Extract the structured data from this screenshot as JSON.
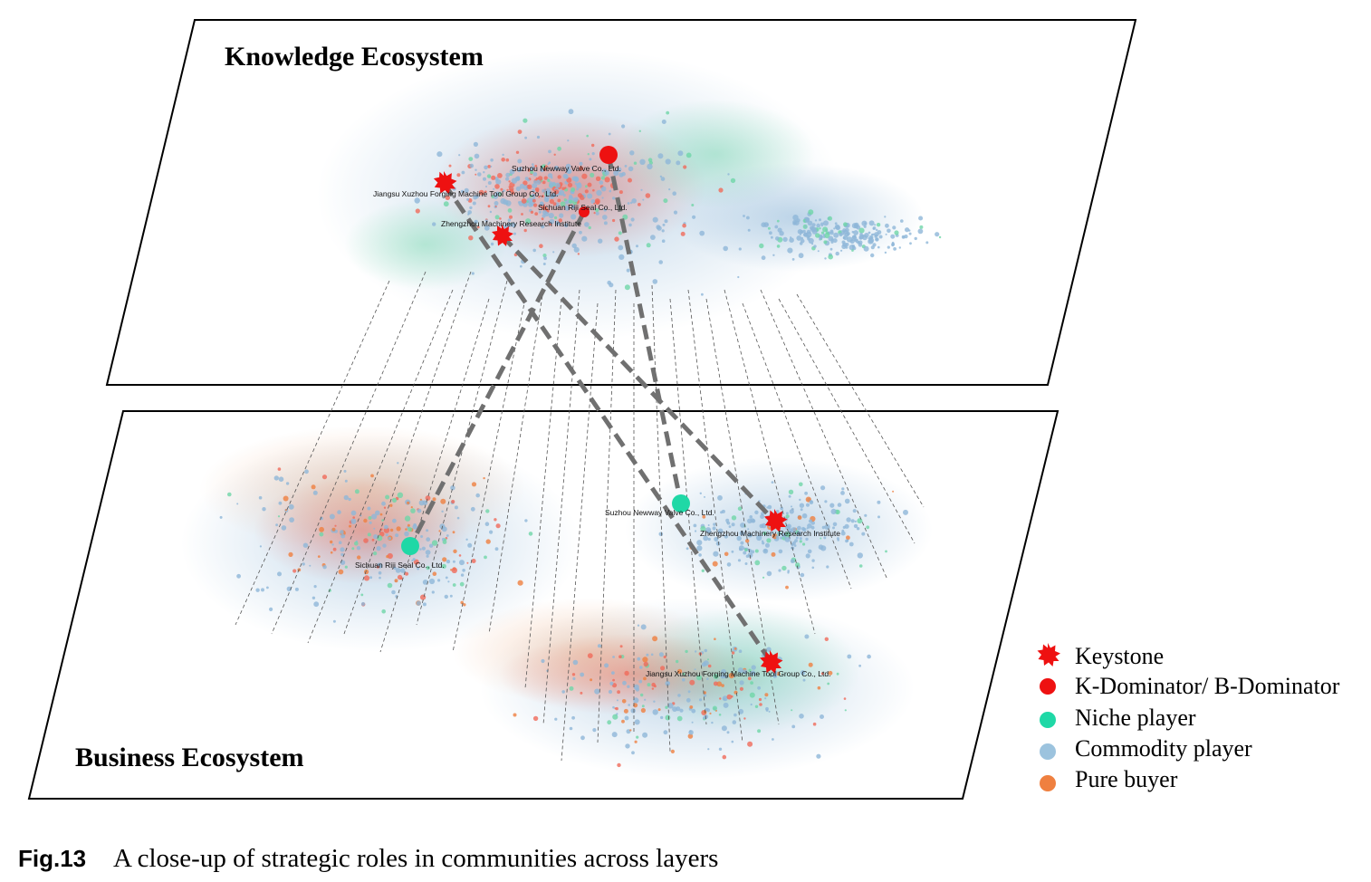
{
  "layers": {
    "knowledge": {
      "title": "Knowledge Ecosystem"
    },
    "business": {
      "title": "Business Ecosystem"
    }
  },
  "knowledge_nodes": [
    {
      "label": "Suzhou Newway Valve Co., Ltd.",
      "role": "dominator"
    },
    {
      "label": "Jiangsu Xuzhou Forging Machine Tool Group Co., Ltd.",
      "role": "keystone"
    },
    {
      "label": "Sichuan Riji Seal Co., Ltd.",
      "role": "dominator"
    },
    {
      "label": "Zhengzhou Machinery Research Institute",
      "role": "keystone"
    }
  ],
  "business_nodes": [
    {
      "label": "Suzhou Newway Valve Co., Ltd.",
      "role": "niche"
    },
    {
      "label": "Zhengzhou Machinery Research Institute",
      "role": "keystone"
    },
    {
      "label": "Sichuan Riji Seal Co., Ltd.",
      "role": "niche"
    },
    {
      "label": "Jiangsu Xuzhou Forging Machine Tool Group Co., Ltd.",
      "role": "keystone"
    }
  ],
  "legend": [
    {
      "label": "Keystone",
      "symbol": "star",
      "color": "#ee1111"
    },
    {
      "label": "K-Dominator/ B-Dominator",
      "symbol": "dot",
      "color": "#ee1111"
    },
    {
      "label": "Niche player",
      "symbol": "dot",
      "color": "#1fd8a6"
    },
    {
      "label": "Commodity player",
      "symbol": "dot",
      "color": "#9cc3de"
    },
    {
      "label": "Pure buyer",
      "symbol": "dot",
      "color": "#ef8040"
    }
  ],
  "caption": {
    "label": "Fig.13",
    "text": "A close-up of strategic roles in communities across layers"
  }
}
